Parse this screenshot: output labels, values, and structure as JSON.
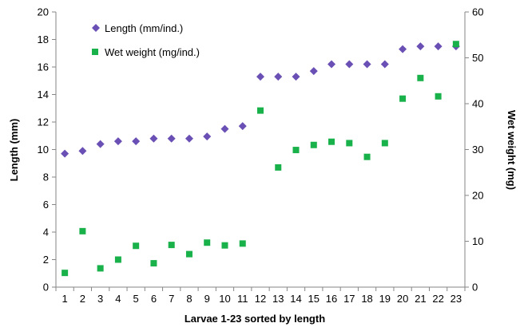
{
  "chart_data": {
    "type": "scatter",
    "x": [
      1,
      2,
      3,
      4,
      5,
      6,
      7,
      8,
      9,
      10,
      11,
      12,
      13,
      14,
      15,
      16,
      17,
      18,
      19,
      20,
      21,
      22,
      23
    ],
    "x_tick_labels": [
      "1",
      "2",
      "3",
      "4",
      "5",
      "6",
      "7",
      "8",
      "9",
      "10",
      "11",
      "12",
      "13",
      "14",
      "15",
      "16",
      "17",
      "18",
      "19",
      "20",
      "21",
      "22",
      "23"
    ],
    "xlabel": "Larvae 1-23 sorted by length",
    "ylabel_left": "Length (mm)",
    "ylabel_right": "Wet weight (mg)",
    "ylim_left": [
      0,
      20
    ],
    "ylim_right": [
      0,
      60
    ],
    "yticks_left": [
      "0",
      "2",
      "4",
      "6",
      "8",
      "10",
      "12",
      "14",
      "16",
      "18",
      "20"
    ],
    "yticks_right": [
      "0",
      "10",
      "20",
      "30",
      "40",
      "50",
      "60"
    ],
    "grid": false,
    "legend_position": "top-left",
    "series": [
      {
        "name": "Length (mm/ind.)",
        "axis": "left",
        "marker": "diamond",
        "color": "#6A4FB4",
        "values": [
          9.7,
          9.9,
          10.4,
          10.6,
          10.6,
          10.8,
          10.8,
          10.8,
          10.95,
          11.5,
          11.7,
          15.3,
          15.3,
          15.3,
          15.7,
          16.2,
          16.2,
          16.2,
          16.2,
          17.3,
          17.5,
          17.5,
          17.5
        ]
      },
      {
        "name": "Wet weight (mg/ind.)",
        "axis": "right",
        "marker": "square",
        "color": "#19B14A",
        "values": [
          3.1,
          12.2,
          4.1,
          6.0,
          9.0,
          5.2,
          9.2,
          7.2,
          9.7,
          9.1,
          9.5,
          38.5,
          26.1,
          29.9,
          31.0,
          31.7,
          31.4,
          28.4,
          31.4,
          41.1,
          45.6,
          41.6,
          53.0
        ]
      }
    ]
  }
}
